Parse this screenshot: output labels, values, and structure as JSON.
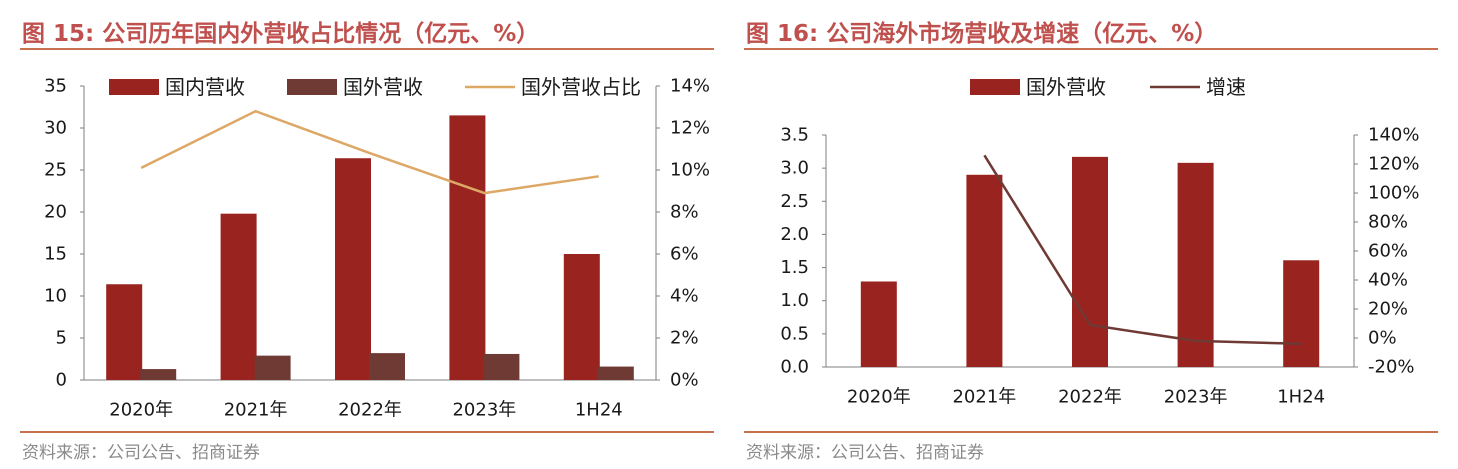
{
  "left": {
    "title": "图 15:  公司历年国内外营收占比情况（亿元、%）",
    "source": "资料来源：公司公告、招商证券"
  },
  "right": {
    "title": "图 16:  公司海外市场营收及增速（亿元、%）",
    "source": "资料来源：公司公告、招商证券"
  },
  "colors": {
    "domestic_bar": "#98231F",
    "foreign_bar": "#6F3934",
    "share_line": "#DDA766",
    "overseas_bar": "#98231F",
    "growth_line": "#6F3934",
    "title": "#C0504D",
    "rule": "#C8714E"
  },
  "chart_data": [
    {
      "type": "bar",
      "categories": [
        "2020年",
        "2021年",
        "2022年",
        "2023年",
        "1H24"
      ],
      "series": [
        {
          "name": "国内营收",
          "type": "bar",
          "axis": "left",
          "values": [
            11.4,
            19.8,
            26.4,
            31.5,
            15.0
          ]
        },
        {
          "name": "国外营收",
          "type": "bar",
          "axis": "left",
          "values": [
            1.3,
            2.9,
            3.2,
            3.1,
            1.6
          ]
        },
        {
          "name": "国外营收占比",
          "type": "line",
          "axis": "right",
          "values": [
            10.1,
            12.8,
            10.8,
            8.9,
            9.7
          ]
        }
      ],
      "y_left": {
        "min": 0,
        "max": 35,
        "ticks": [
          "0",
          "5",
          "10",
          "15",
          "20",
          "25",
          "30",
          "35"
        ]
      },
      "y_right": {
        "min": 0,
        "max": 14,
        "ticks": [
          "0%",
          "2%",
          "4%",
          "6%",
          "8%",
          "10%",
          "12%",
          "14%"
        ]
      },
      "legend": "top",
      "grid": false
    },
    {
      "type": "bar",
      "categories": [
        "2020年",
        "2021年",
        "2022年",
        "2023年",
        "1H24"
      ],
      "series": [
        {
          "name": "国外营收",
          "type": "bar",
          "axis": "left",
          "values": [
            1.29,
            2.9,
            3.17,
            3.08,
            1.61
          ]
        },
        {
          "name": "增速",
          "type": "line",
          "axis": "right",
          "values": [
            null,
            126,
            9,
            -2,
            -4
          ]
        }
      ],
      "y_left": {
        "min": 0,
        "max": 3.5,
        "ticks": [
          "0.0",
          "0.5",
          "1.0",
          "1.5",
          "2.0",
          "2.5",
          "3.0",
          "3.5"
        ]
      },
      "y_right": {
        "min": -20,
        "max": 140,
        "ticks": [
          "-20%",
          "0%",
          "20%",
          "40%",
          "60%",
          "80%",
          "100%",
          "120%",
          "140%"
        ]
      },
      "legend": "top",
      "grid": false
    }
  ]
}
